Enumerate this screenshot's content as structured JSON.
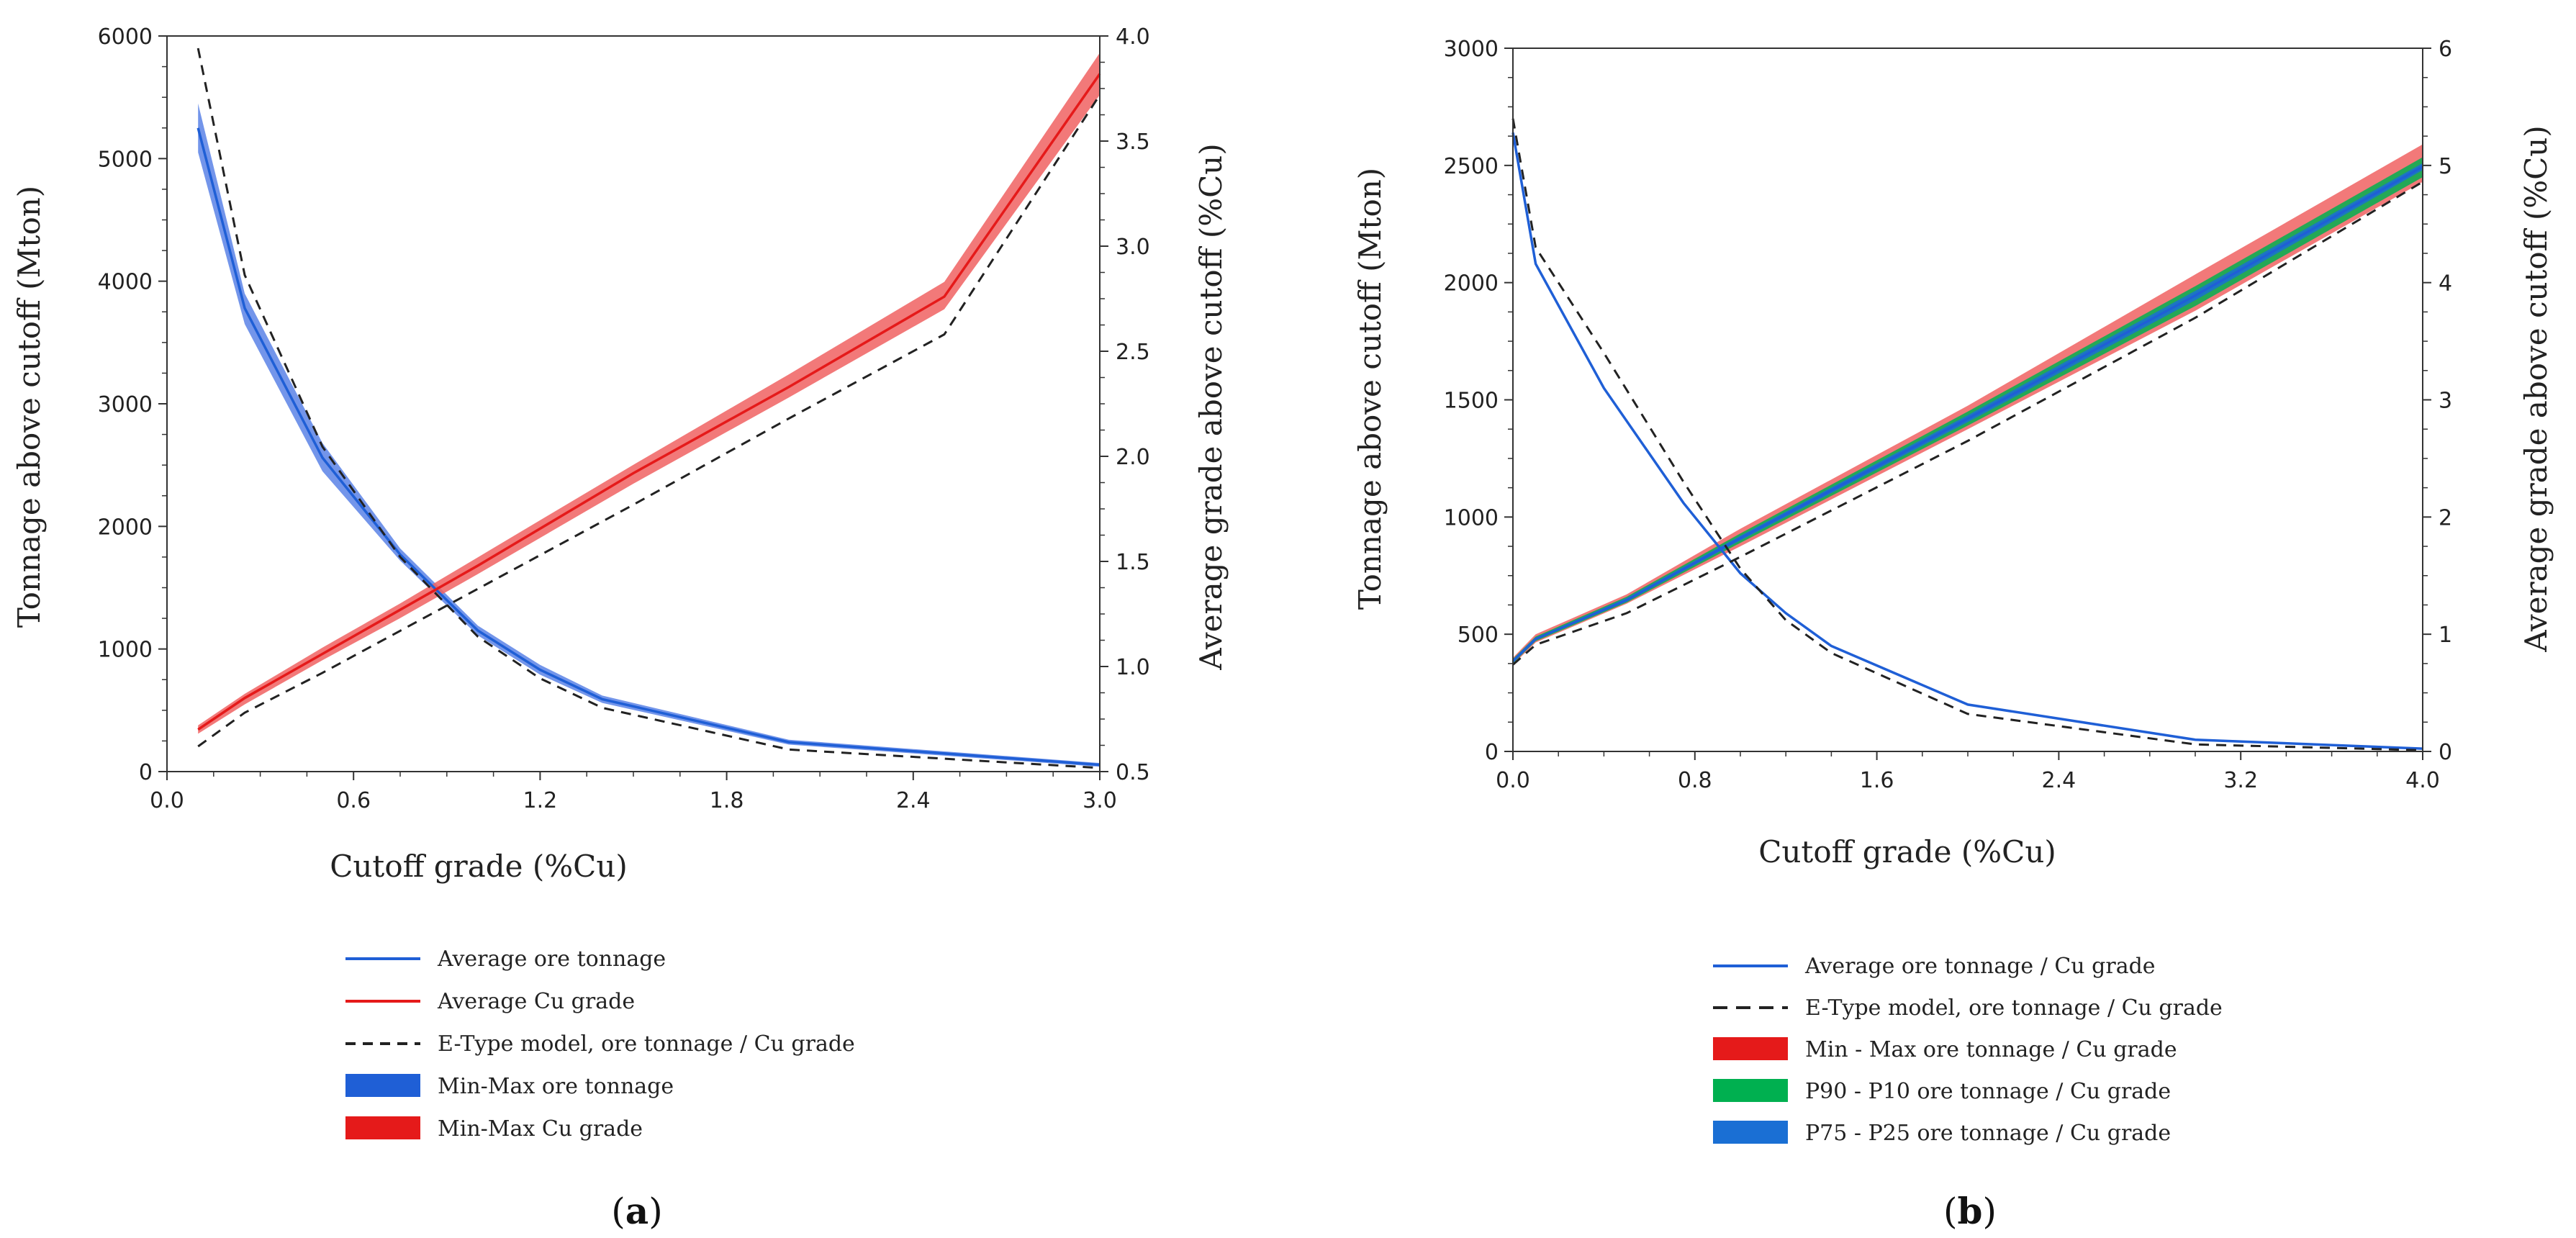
{
  "colors": {
    "blue": "#1f5fd6",
    "blue_band": "#5b82e6",
    "red": "#e51a1a",
    "red_band": "#f06262",
    "green": "#00b050",
    "blue2": "#1a6fd4",
    "black": "#222222"
  },
  "chart_data": [
    {
      "id": "a",
      "type": "line",
      "caption_label": "a",
      "caption_open": "(",
      "caption_close": ")",
      "xlabel": "Cutoff grade (%Cu)",
      "ylabel": "Tonnage above cutoff (Mton)",
      "y2label": "Average grade above cutoff (%Cu)",
      "xlim": [
        0,
        3.0
      ],
      "ylim": [
        0,
        6000
      ],
      "y2lim": [
        0.5,
        4.0
      ],
      "xticks": [
        {
          "v": 0.0,
          "label": "0.0"
        },
        {
          "v": 0.6,
          "label": "0.6"
        },
        {
          "v": 1.2,
          "label": "1.2"
        },
        {
          "v": 1.8,
          "label": "1.8"
        },
        {
          "v": 2.4,
          "label": "2.4"
        },
        {
          "v": 3.0,
          "label": "3.0"
        }
      ],
      "yticks": [
        {
          "v": 0,
          "label": "0"
        },
        {
          "v": 1000,
          "label": "1000"
        },
        {
          "v": 2000,
          "label": "2000"
        },
        {
          "v": 3000,
          "label": "3000"
        },
        {
          "v": 4000,
          "label": "4000"
        },
        {
          "v": 5000,
          "label": "5000"
        },
        {
          "v": 6000,
          "label": "6000"
        }
      ],
      "y2ticks": [
        {
          "v": 0.5,
          "label": "0.5"
        },
        {
          "v": 1.0,
          "label": "1.0"
        },
        {
          "v": 1.5,
          "label": "1.5"
        },
        {
          "v": 2.0,
          "label": "2.0"
        },
        {
          "v": 2.5,
          "label": "2.5"
        },
        {
          "v": 3.0,
          "label": "3.0"
        },
        {
          "v": 3.5,
          "label": "3.5"
        },
        {
          "v": 4.0,
          "label": "4.0"
        }
      ],
      "bands": [
        {
          "name": "Min-Max ore tonnage",
          "axis": "y",
          "color": "#5b82e6",
          "x": [
            0.1,
            0.25,
            0.5,
            0.75,
            1.0,
            1.2,
            1.4,
            2.0,
            3.0
          ],
          "lo": [
            5050,
            3650,
            2450,
            1720,
            1110,
            790,
            560,
            220,
            40
          ],
          "hi": [
            5450,
            3900,
            2680,
            1820,
            1190,
            870,
            620,
            260,
            70
          ]
        },
        {
          "name": "Min-Max Cu grade",
          "axis": "y2",
          "color": "#f06262",
          "x": [
            0.1,
            0.25,
            0.5,
            0.75,
            1.0,
            1.5,
            2.0,
            2.5,
            3.0
          ],
          "lo": [
            0.68,
            0.82,
            1.03,
            1.23,
            1.44,
            1.87,
            2.28,
            2.7,
            3.72
          ],
          "hi": [
            0.72,
            0.87,
            1.09,
            1.3,
            1.52,
            1.96,
            2.39,
            2.83,
            3.92
          ]
        }
      ],
      "series": [
        {
          "name": "Average ore tonnage",
          "axis": "y",
          "color": "#1f5fd6",
          "dash": "",
          "x": [
            0.1,
            0.25,
            0.5,
            0.75,
            1.0,
            1.2,
            1.4,
            2.0,
            3.0
          ],
          "y": [
            5250,
            3780,
            2560,
            1770,
            1150,
            830,
            590,
            240,
            55
          ]
        },
        {
          "name": "Average Cu grade",
          "axis": "y2",
          "color": "#e51a1a",
          "dash": "",
          "x": [
            0.1,
            0.25,
            0.5,
            0.75,
            1.0,
            1.5,
            2.0,
            2.5,
            3.0
          ],
          "y": [
            0.7,
            0.85,
            1.06,
            1.27,
            1.48,
            1.92,
            2.33,
            2.76,
            3.82
          ]
        },
        {
          "name": "E-Type model, ore tonnage",
          "axis": "y",
          "color": "#222222",
          "dash": "14,10",
          "x": [
            0.1,
            0.25,
            0.5,
            0.75,
            1.0,
            1.2,
            1.4,
            2.0,
            3.0
          ],
          "y": [
            5900,
            4050,
            2650,
            1750,
            1100,
            760,
            520,
            180,
            30
          ]
        },
        {
          "name": "E-Type model, Cu grade",
          "axis": "y2",
          "color": "#222222",
          "dash": "14,10",
          "x": [
            0.1,
            0.25,
            0.5,
            0.75,
            1.0,
            1.5,
            2.0,
            2.5,
            3.0
          ],
          "y": [
            0.62,
            0.78,
            0.97,
            1.17,
            1.37,
            1.77,
            2.18,
            2.58,
            3.72
          ]
        }
      ],
      "legend": [
        {
          "label": "Average ore tonnage",
          "kind": "line",
          "color": "#1f5fd6",
          "dash": ""
        },
        {
          "label": "Average Cu grade",
          "kind": "line",
          "color": "#e51a1a",
          "dash": ""
        },
        {
          "label": "E-Type model, ore tonnage / Cu grade",
          "kind": "line",
          "color": "#222222",
          "dash": "14,10"
        },
        {
          "label": "Min-Max ore tonnage",
          "kind": "patch",
          "color": "#1f5fd6"
        },
        {
          "label": "Min-Max Cu grade",
          "kind": "patch",
          "color": "#e51a1a"
        }
      ]
    },
    {
      "id": "b",
      "type": "line",
      "caption_label": "b",
      "caption_open": "(",
      "caption_close": ")",
      "xlabel": "Cutoff grade (%Cu)",
      "ylabel": "Tonnage above cutoff (Mton)",
      "y2label": "Average grade above cutoff (%Cu)",
      "xlim": [
        0,
        4.0
      ],
      "ylim": [
        0,
        3000
      ],
      "y2lim": [
        0,
        6
      ],
      "xticks": [
        {
          "v": 0.0,
          "label": "0.0"
        },
        {
          "v": 0.8,
          "label": "0.8"
        },
        {
          "v": 1.6,
          "label": "1.6"
        },
        {
          "v": 2.4,
          "label": "2.4"
        },
        {
          "v": 3.2,
          "label": "3.2"
        },
        {
          "v": 4.0,
          "label": "4.0"
        }
      ],
      "yticks": [
        {
          "v": 0,
          "label": "0"
        },
        {
          "v": 500,
          "label": "500"
        },
        {
          "v": 1000,
          "label": "1000"
        },
        {
          "v": 1500,
          "label": "1500"
        },
        {
          "v": 2000,
          "label": "2000"
        },
        {
          "v": 2500,
          "label": "2500"
        },
        {
          "v": 3000,
          "label": "3000"
        }
      ],
      "y2ticks": [
        {
          "v": 0,
          "label": "0"
        },
        {
          "v": 1,
          "label": "1"
        },
        {
          "v": 2,
          "label": "2"
        },
        {
          "v": 3,
          "label": "3"
        },
        {
          "v": 4,
          "label": "4"
        },
        {
          "v": 5,
          "label": "5"
        },
        {
          "v": 6,
          "label": "6"
        }
      ],
      "bands": [
        {
          "name": "Min - Max Cu grade",
          "axis": "y2",
          "color": "#f06262",
          "x": [
            0.0,
            0.1,
            0.5,
            1.0,
            2.0,
            3.0,
            4.0
          ],
          "lo": [
            0.74,
            0.93,
            1.26,
            1.75,
            2.75,
            3.76,
            4.86
          ],
          "hi": [
            0.8,
            1.0,
            1.34,
            1.9,
            2.95,
            4.07,
            5.18
          ]
        },
        {
          "name": "P90 - P10 Cu grade",
          "axis": "y2",
          "color": "#00b050",
          "x": [
            0.0,
            0.1,
            0.5,
            1.0,
            2.0,
            3.0,
            4.0
          ],
          "lo": [
            0.75,
            0.94,
            1.27,
            1.78,
            2.78,
            3.8,
            4.9
          ],
          "hi": [
            0.79,
            0.98,
            1.32,
            1.86,
            2.9,
            3.97,
            5.07
          ]
        },
        {
          "name": "P75 - P25 Cu grade",
          "axis": "y2",
          "color": "#1a6fd4",
          "x": [
            0.0,
            0.1,
            0.5,
            1.0,
            2.0,
            3.0,
            4.0
          ],
          "lo": [
            0.76,
            0.95,
            1.28,
            1.8,
            2.81,
            3.85,
            4.96
          ],
          "hi": [
            0.78,
            0.97,
            1.31,
            1.84,
            2.87,
            3.93,
            5.02
          ]
        }
      ],
      "series": [
        {
          "name": "Average ore tonnage",
          "axis": "y",
          "color": "#1f5fd6",
          "dash": "",
          "x": [
            0.0,
            0.1,
            0.4,
            0.75,
            1.0,
            1.2,
            1.4,
            2.0,
            3.0,
            4.0
          ],
          "y": [
            2640,
            2080,
            1550,
            1060,
            760,
            590,
            450,
            200,
            50,
            12
          ]
        },
        {
          "name": "Average Cu grade",
          "axis": "y2",
          "color": "#1f5fd6",
          "dash": "",
          "x": [
            0.0,
            0.1,
            0.5,
            1.0,
            2.0,
            3.0,
            4.0
          ],
          "y": [
            0.77,
            0.96,
            1.29,
            1.82,
            2.84,
            3.89,
            4.99
          ]
        },
        {
          "name": "E-Type model, ore tonnage",
          "axis": "y",
          "color": "#222222",
          "dash": "14,10",
          "x": [
            0.0,
            0.1,
            0.4,
            0.75,
            1.0,
            1.2,
            1.4,
            2.0,
            3.0,
            4.0
          ],
          "y": [
            2700,
            2150,
            1700,
            1150,
            780,
            560,
            420,
            160,
            30,
            5
          ]
        },
        {
          "name": "E-Type model, Cu grade",
          "axis": "y2",
          "color": "#222222",
          "dash": "14,10",
          "x": [
            0.0,
            0.1,
            0.5,
            1.0,
            2.0,
            3.0,
            4.0
          ],
          "y": [
            0.74,
            0.91,
            1.18,
            1.66,
            2.65,
            3.7,
            4.86
          ]
        }
      ],
      "legend": [
        {
          "label": "Average ore tonnage / Cu grade",
          "kind": "line",
          "color": "#1f5fd6",
          "dash": ""
        },
        {
          "label": "E-Type model, ore tonnage / Cu grade",
          "kind": "line",
          "color": "#222222",
          "dash": "20,12"
        },
        {
          "label": "Min - Max ore tonnage / Cu grade",
          "kind": "patch",
          "color": "#e51a1a"
        },
        {
          "label": "P90 - P10 ore tonnage / Cu grade",
          "kind": "patch",
          "color": "#00b050"
        },
        {
          "label": "P75 - P25 ore tonnage / Cu grade",
          "kind": "patch",
          "color": "#1a6fd4"
        }
      ]
    }
  ]
}
